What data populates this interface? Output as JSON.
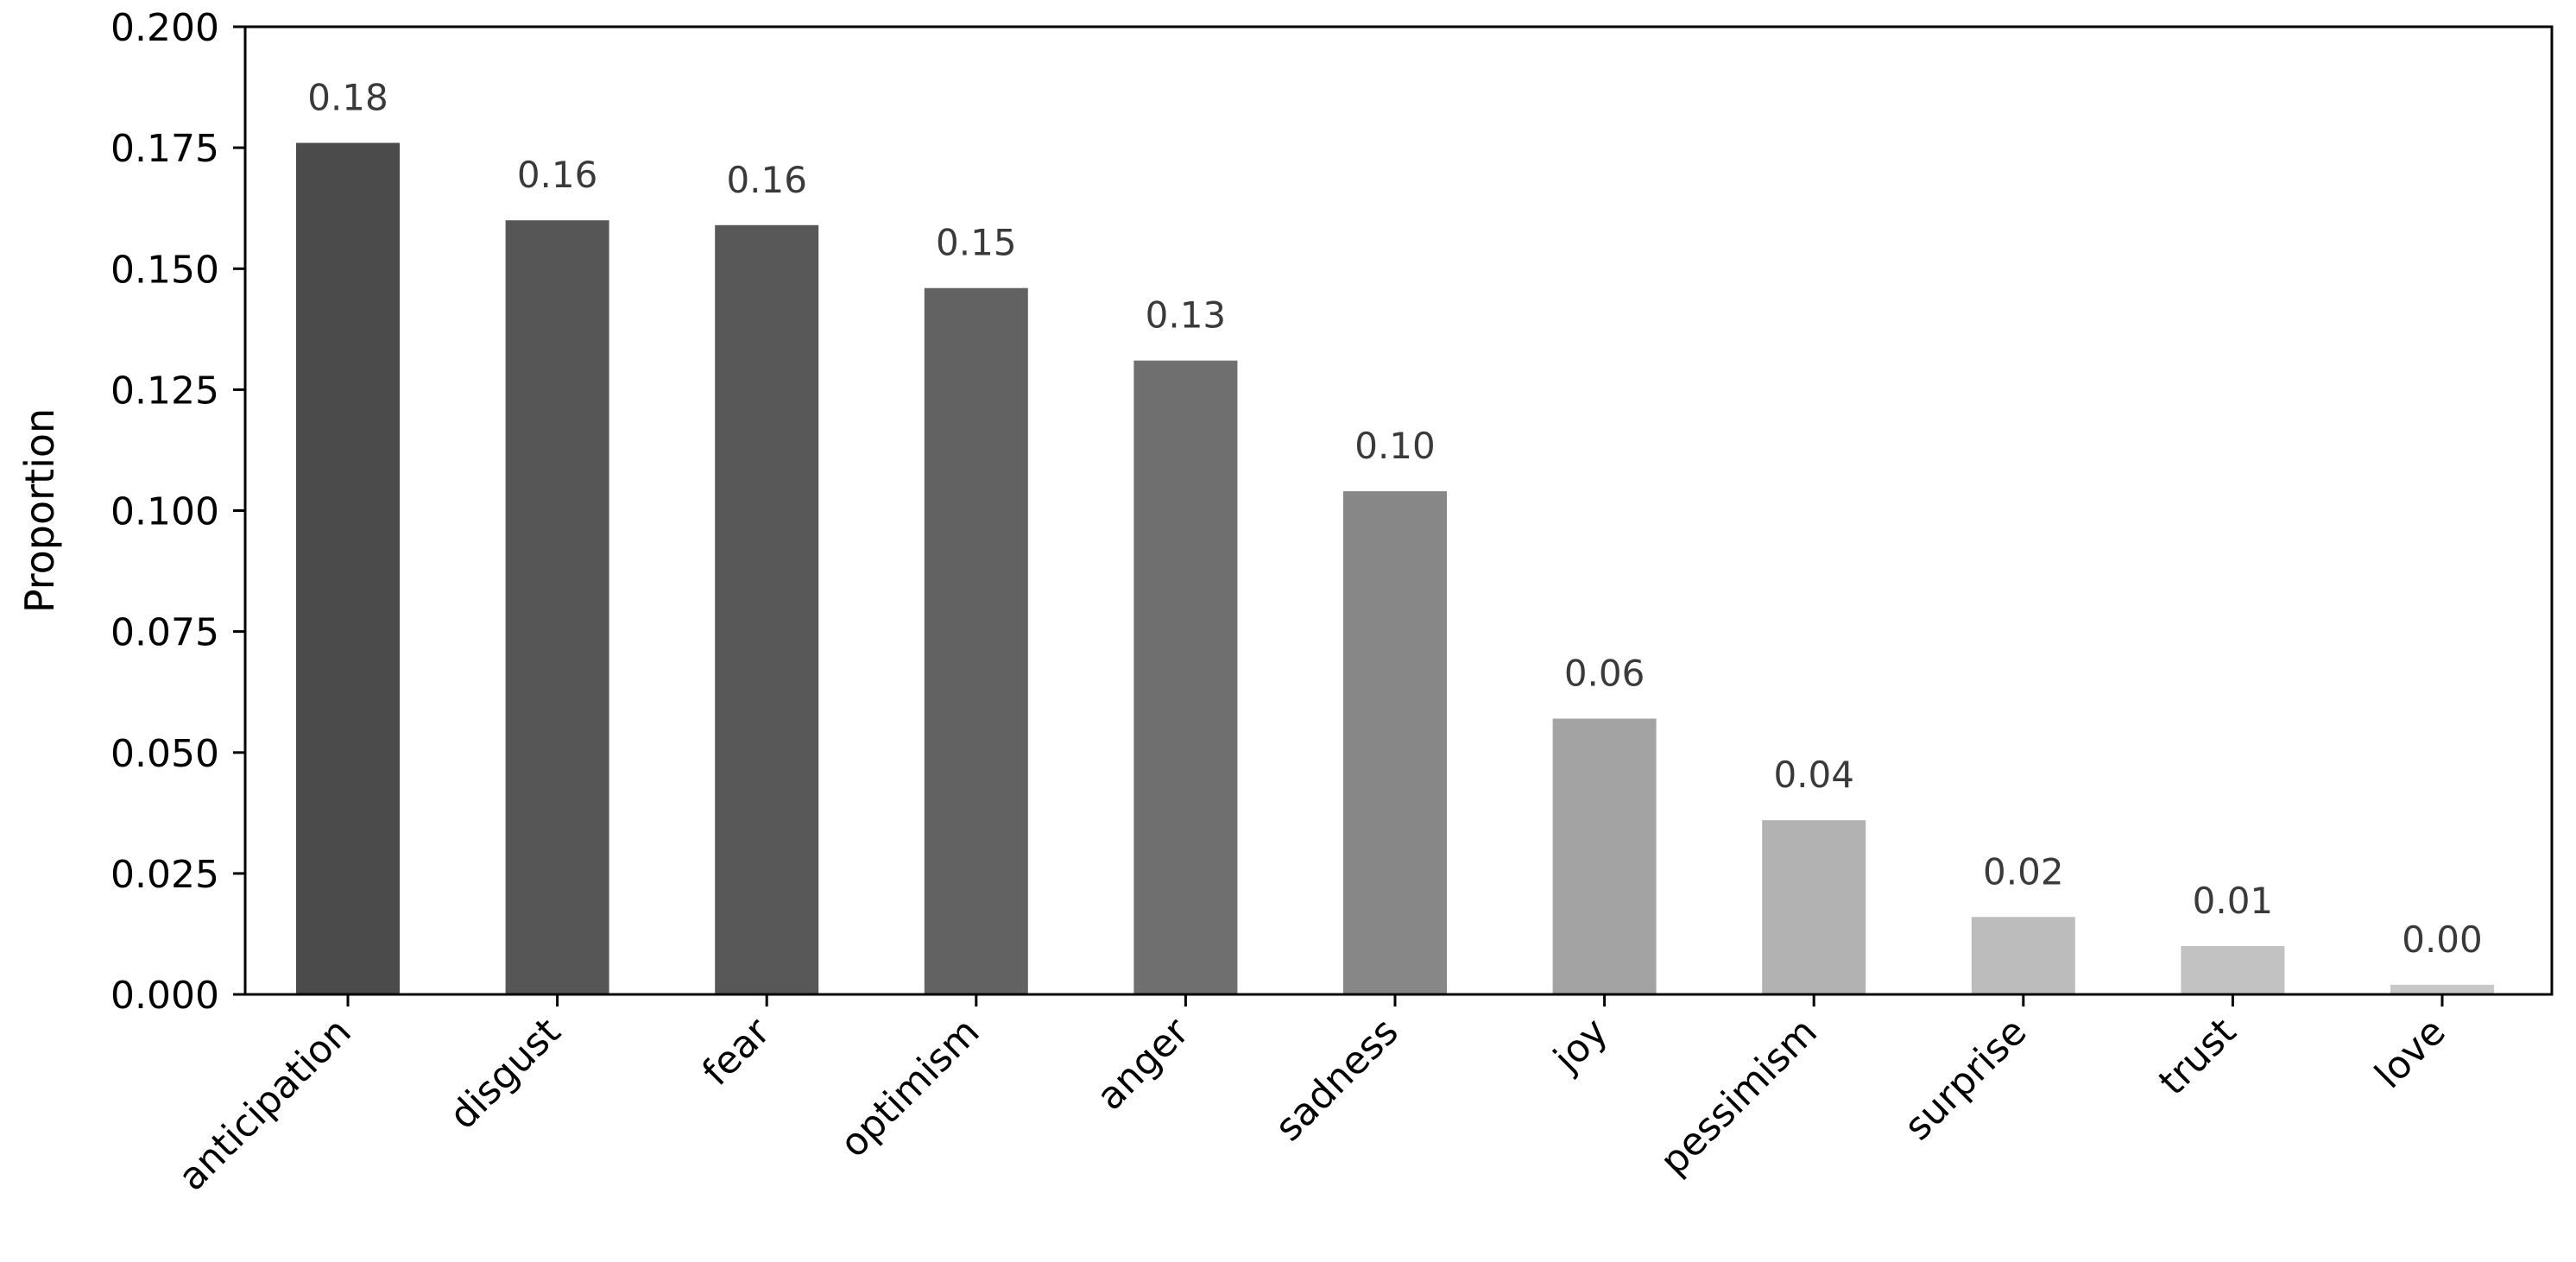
{
  "chart_data": {
    "type": "bar",
    "categories": [
      "anticipation",
      "disgust",
      "fear",
      "optimism",
      "anger",
      "sadness",
      "joy",
      "pessimism",
      "surprise",
      "trust",
      "love"
    ],
    "values": [
      0.176,
      0.16,
      0.159,
      0.146,
      0.131,
      0.104,
      0.057,
      0.036,
      0.016,
      0.01,
      0.002
    ],
    "data_labels": [
      "0.18",
      "0.16",
      "0.16",
      "0.15",
      "0.13",
      "0.10",
      "0.06",
      "0.04",
      "0.02",
      "0.01",
      "0.00"
    ],
    "bar_colors": [
      "#4b4b4b",
      "#565656",
      "#585858",
      "#626262",
      "#6f6f6f",
      "#878787",
      "#a3a3a3",
      "#b2b2b2",
      "#bcbcbc",
      "#c2c2c2",
      "#c8c8c8"
    ],
    "title": "",
    "xlabel": "",
    "ylabel": "Proportion",
    "ylim": [
      0,
      0.2
    ],
    "yticks": [
      "0.000",
      "0.025",
      "0.050",
      "0.075",
      "0.100",
      "0.125",
      "0.150",
      "0.175",
      "0.200"
    ],
    "grid": false,
    "legend": "none"
  }
}
